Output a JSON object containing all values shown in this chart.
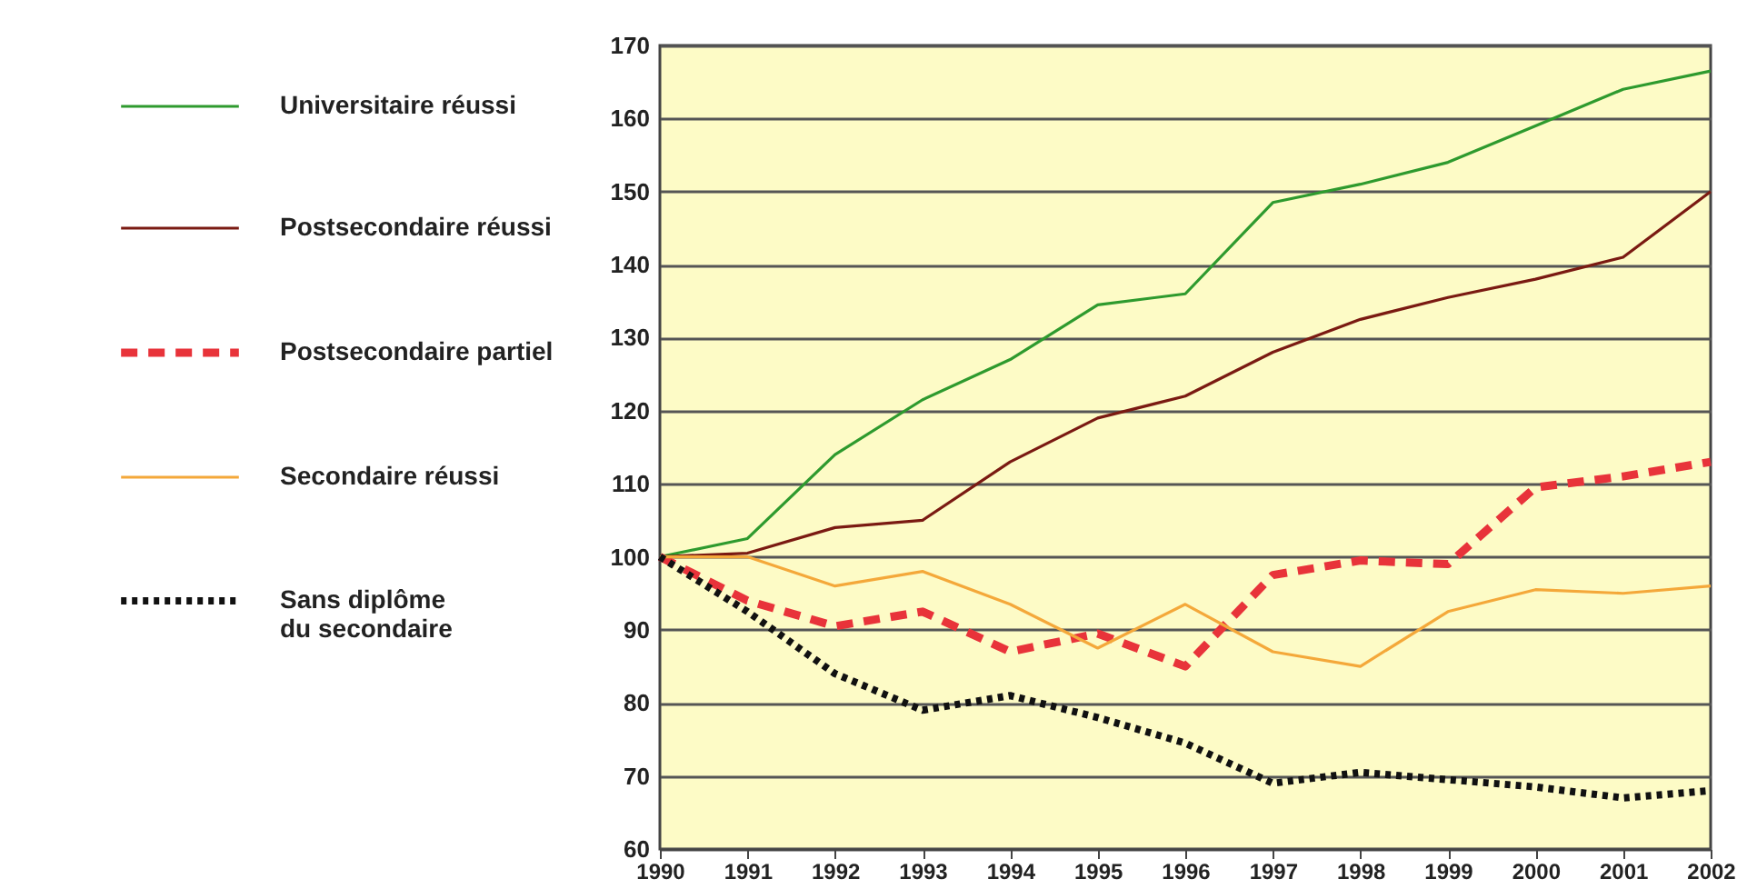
{
  "chart_data": {
    "type": "line",
    "x": [
      1990,
      1991,
      1992,
      1993,
      1994,
      1995,
      1996,
      1997,
      1998,
      1999,
      2000,
      2001,
      2002
    ],
    "xlim": [
      1990,
      2002
    ],
    "xticks": [
      1990,
      1991,
      1992,
      1993,
      1994,
      1995,
      1996,
      1997,
      1998,
      1999,
      2000,
      2001,
      2002
    ],
    "ylim": [
      60,
      170
    ],
    "yticks": [
      60,
      70,
      80,
      90,
      100,
      110,
      120,
      130,
      140,
      150,
      160,
      170
    ],
    "grid": "y",
    "legend": "left",
    "series": [
      {
        "name": "Universitaire réussi",
        "color": "#2e9a2e",
        "line_style": "solid",
        "values": [
          100,
          102.5,
          114,
          121.5,
          127,
          134.5,
          136,
          148.5,
          151,
          154,
          159,
          164,
          166.5
        ]
      },
      {
        "name": "Postsecondaire réussi",
        "color": "#7a1a12",
        "line_style": "solid",
        "values": [
          100,
          100.5,
          104,
          105,
          113,
          119,
          122,
          128,
          132.5,
          135.5,
          138,
          141,
          150
        ]
      },
      {
        "name": "Postsecondaire partiel",
        "color": "#e8333a",
        "line_style": "dashed",
        "values": [
          100,
          94,
          90.5,
          92.5,
          87,
          89.5,
          85,
          97.5,
          99.5,
          99,
          109.5,
          111,
          113
        ]
      },
      {
        "name": "Secondaire réussi",
        "color": "#f4a83a",
        "line_style": "solid",
        "values": [
          100,
          100,
          96,
          98,
          93.5,
          87.5,
          93.5,
          87,
          85,
          92.5,
          95.5,
          95,
          96
        ]
      },
      {
        "name": "Sans diplôme\ndu secondaire",
        "color": "#111111",
        "line_style": "dotted",
        "values": [
          100,
          92.5,
          84,
          79,
          81,
          78,
          74.5,
          69,
          70.5,
          69.5,
          68.5,
          67,
          68
        ]
      }
    ]
  }
}
